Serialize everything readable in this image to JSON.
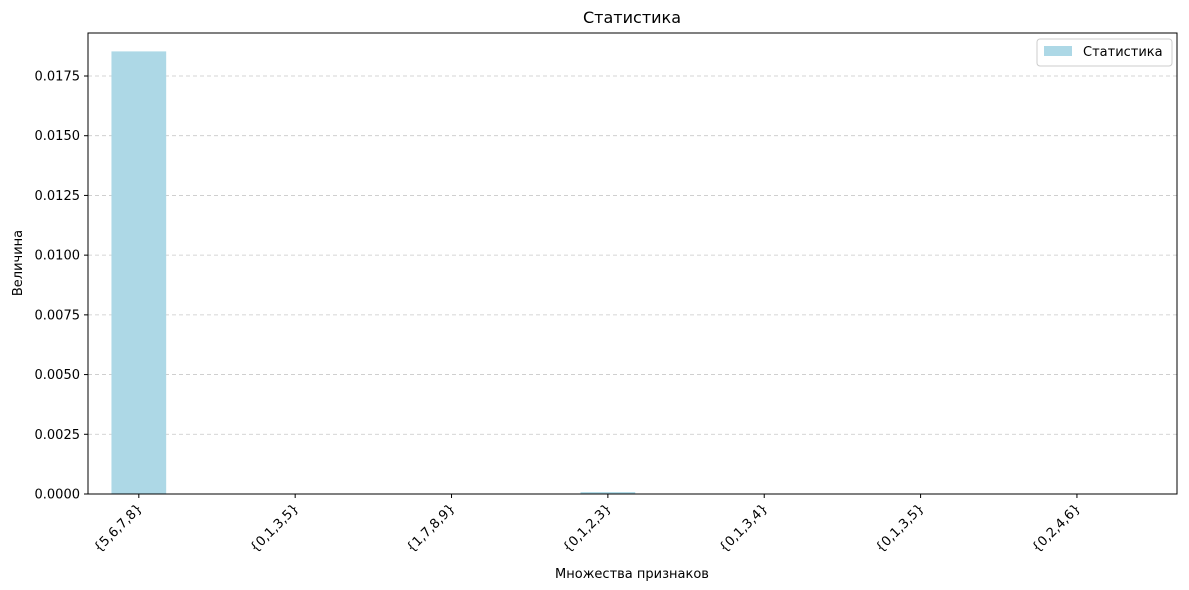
{
  "chart_data": {
    "type": "bar",
    "title": "Статистика",
    "xlabel": "Множества признаков",
    "ylabel": "Величина",
    "categories": [
      "{5,6,7,8}",
      "{0,1,3,5}",
      "{1,7,8,9}",
      "{0,1,2,3}",
      "{0,1,3,4}",
      "{0,1,3,5}",
      "{0,2,4,6}"
    ],
    "series": [
      {
        "name": "Статистика",
        "values": [
          0.01853,
          0.0,
          0.0,
          8e-05,
          0.0,
          0.0,
          0.0
        ],
        "color": "#add8e6"
      }
    ],
    "ylim": [
      0,
      0.0193
    ],
    "yticks": [
      0.0,
      0.0025,
      0.005,
      0.0075,
      0.01,
      0.0125,
      0.015,
      0.0175
    ],
    "ytick_labels": [
      "0.0000",
      "0.0025",
      "0.0050",
      "0.0075",
      "0.0100",
      "0.0125",
      "0.0150",
      "0.0175"
    ],
    "grid": "y-dashed",
    "legend": "top-right"
  }
}
